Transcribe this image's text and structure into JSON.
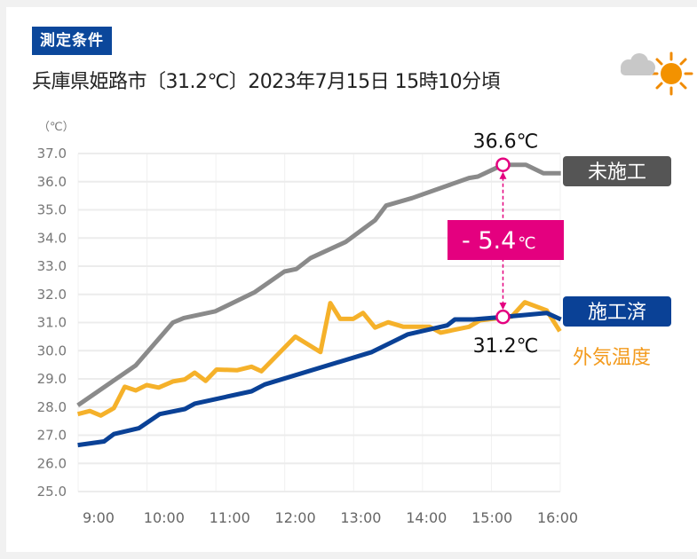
{
  "header": {
    "badge": "測定条件",
    "condition": "兵庫県姫路市〔31.2℃〕2023年7月15日 15時10分頃",
    "weather_icon": "cloud-sun-icon"
  },
  "chart_data": {
    "type": "line",
    "title": "",
    "xlabel": "",
    "ylabel": "（℃）",
    "ylim": [
      25.0,
      37.0
    ],
    "y_ticks": [
      "25.0",
      "26.0",
      "27.0",
      "28.0",
      "29.0",
      "30.0",
      "31.0",
      "32.0",
      "33.0",
      "34.0",
      "35.0",
      "36.0",
      "37.0"
    ],
    "x_ticks": [
      "9:00",
      "10:00",
      "11:00",
      "12:00",
      "13:00",
      "14:00",
      "15:00",
      "16:00"
    ],
    "grid": true,
    "series": [
      {
        "name": "未施工",
        "color": "#8a8a8a",
        "label_color": "#555555",
        "points": [
          [
            "8:41",
            28.06
          ],
          [
            "9:34",
            29.48
          ],
          [
            "10:08",
            31.0
          ],
          [
            "10:18",
            31.16
          ],
          [
            "10:47",
            31.4
          ],
          [
            "11:23",
            32.08
          ],
          [
            "11:50",
            32.81
          ],
          [
            "12:01",
            32.9
          ],
          [
            "12:14",
            33.29
          ],
          [
            "12:46",
            33.86
          ],
          [
            "13:13",
            34.63
          ],
          [
            "13:23",
            35.15
          ],
          [
            "13:47",
            35.42
          ],
          [
            "14:39",
            36.13
          ],
          [
            "14:47",
            36.18
          ],
          [
            "15:10",
            36.6
          ],
          [
            "15:31",
            36.6
          ],
          [
            "15:47",
            36.3
          ],
          [
            "16:03",
            36.3
          ]
        ]
      },
      {
        "name": "外気温度",
        "color": "#f5b12a",
        "label_color": "#f39a1c",
        "points": [
          [
            "8:41",
            27.75
          ],
          [
            "8:52",
            27.86
          ],
          [
            "9:02",
            27.7
          ],
          [
            "9:14",
            27.96
          ],
          [
            "9:24",
            28.72
          ],
          [
            "9:34",
            28.59
          ],
          [
            "9:44",
            28.78
          ],
          [
            "9:55",
            28.69
          ],
          [
            "10:08",
            28.91
          ],
          [
            "10:19",
            28.98
          ],
          [
            "10:28",
            29.22
          ],
          [
            "10:38",
            28.93
          ],
          [
            "10:48",
            29.33
          ],
          [
            "11:07",
            29.31
          ],
          [
            "11:20",
            29.43
          ],
          [
            "11:29",
            29.27
          ],
          [
            "12:00",
            30.5
          ],
          [
            "12:23",
            29.95
          ],
          [
            "12:32",
            31.69
          ],
          [
            "12:41",
            31.13
          ],
          [
            "12:53",
            31.13
          ],
          [
            "13:02",
            31.34
          ],
          [
            "13:13",
            30.82
          ],
          [
            "13:25",
            31.01
          ],
          [
            "13:39",
            30.85
          ],
          [
            "14:03",
            30.85
          ],
          [
            "14:13",
            30.64
          ],
          [
            "14:39",
            30.85
          ],
          [
            "14:49",
            31.08
          ],
          [
            "15:18",
            31.21
          ],
          [
            "15:30",
            31.72
          ],
          [
            "15:50",
            31.43
          ],
          [
            "16:02",
            30.69
          ]
        ]
      },
      {
        "name": "施工済",
        "color": "#0a4196",
        "label_color": "#0a4196",
        "points": [
          [
            "8:41",
            26.65
          ],
          [
            "9:05",
            26.78
          ],
          [
            "9:14",
            27.04
          ],
          [
            "9:37",
            27.25
          ],
          [
            "9:56",
            27.75
          ],
          [
            "10:19",
            27.93
          ],
          [
            "10:28",
            28.12
          ],
          [
            "11:20",
            28.56
          ],
          [
            "11:32",
            28.8
          ],
          [
            "13:10",
            29.95
          ],
          [
            "13:43",
            30.58
          ],
          [
            "14:19",
            30.9
          ],
          [
            "14:26",
            31.11
          ],
          [
            "14:43",
            31.11
          ],
          [
            "15:10",
            31.2
          ],
          [
            "15:50",
            31.34
          ],
          [
            "16:03",
            31.11
          ]
        ]
      }
    ],
    "annotations": {
      "marker_time": "15:10",
      "untreated_value": "36.6℃",
      "treated_value": "31.2℃",
      "difference": "- 5.4",
      "difference_unit": "℃",
      "difference_color": "#e4007f"
    }
  }
}
